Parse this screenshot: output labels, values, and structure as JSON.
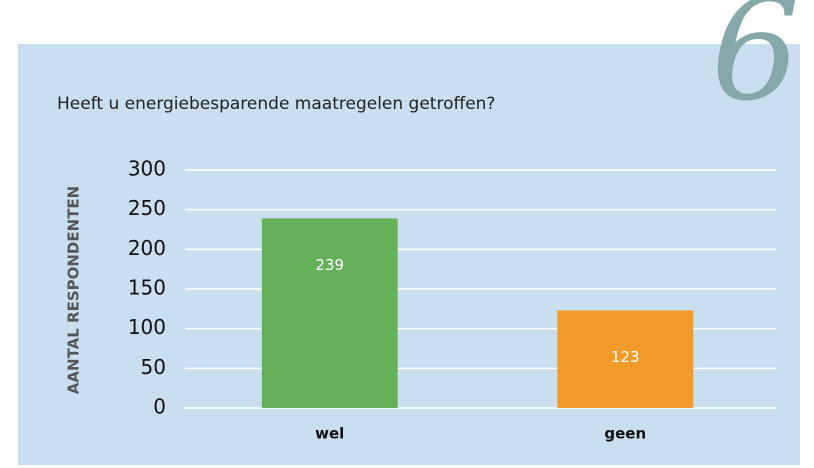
{
  "chart_data": {
    "type": "bar",
    "title": "Heeft u energiebesparende maatregelen getroffen?",
    "annotation": "6",
    "y_label": "AANTAL RESPONDENTEN",
    "categories": [
      "wel",
      "geen"
    ],
    "values": [
      239,
      123
    ],
    "colors": [
      "#66b05a",
      "#f29a2a"
    ],
    "ylim": [
      0,
      300
    ],
    "yticks": [
      0,
      50,
      100,
      150,
      200,
      250,
      300
    ],
    "grid": true
  }
}
